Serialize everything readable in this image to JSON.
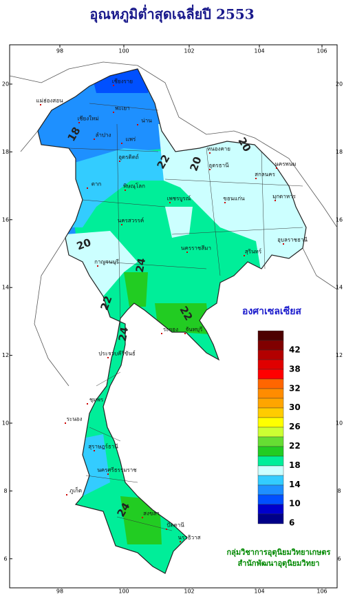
{
  "title": "อุณหภูมิต่ำสุดเฉลี่ยปี 2553",
  "map": {
    "lon_ticks": [
      98,
      100,
      102,
      104,
      106
    ],
    "lat_ticks": [
      20,
      18,
      16,
      14,
      12,
      10,
      8,
      6
    ],
    "places": [
      "เชียงราย",
      "เชียงใหม่",
      "พะเยา",
      "น่าน",
      "ลำปาง",
      "แพร่",
      "แม่ฮ่องสอน",
      "อุตรดิตถ์",
      "หนองคาย",
      "อุดรธานี",
      "นครพนม",
      "สกลนคร",
      "มุกดาหาร",
      "ขอนแก่น",
      "ตาก",
      "พิษณุโลก",
      "เพชรบูรณ์",
      "นครสวรรค์",
      "นครราชสีมา",
      "สุรินทร์",
      "อุบลราชธานี",
      "กาญจนบุรี",
      "ระยอง",
      "จันทบุรี",
      "ประจวบคีรีขันธ์",
      "ชุมพร",
      "ระนอง",
      "สุราษฎร์ธานี",
      "นครศรีธรรมราช",
      "ภูเก็ต",
      "สงขลา",
      "ปัตตานี",
      "นราธิวาส"
    ],
    "contour_labels": [
      "18",
      "20",
      "20",
      "20",
      "22",
      "22",
      "24",
      "24",
      "22",
      "24"
    ]
  },
  "legend": {
    "title": "องศาเซลเซียส",
    "colors": [
      "#4d0000",
      "#800000",
      "#b30000",
      "#e00000",
      "#ff0000",
      "#ff6600",
      "#ff8c00",
      "#ffa500",
      "#ffcc00",
      "#ffff00",
      "#ccff33",
      "#66dd33",
      "#22cc22",
      "#00ee99",
      "#ccffff",
      "#33ccff",
      "#1e90ff",
      "#0050ff",
      "#0000cc",
      "#000088"
    ],
    "labels": [
      "42",
      "38",
      "32",
      "30",
      "26",
      "22",
      "18",
      "14",
      "10",
      "6"
    ]
  },
  "credits": [
    "กลุ่มวิชาการอุตุนิยมวิทยาเกษตร",
    "สำนักพัฒนาอุตุนิยมวิทยา"
  ]
}
